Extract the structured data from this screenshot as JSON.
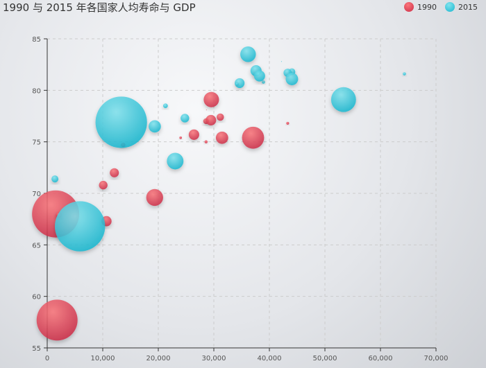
{
  "chart_data": {
    "type": "scatter",
    "title": "1990 与 2015 年各国家人均寿命与 GDP",
    "xlim": [
      0,
      70000
    ],
    "ylim": [
      55,
      85
    ],
    "xticks": [
      "0",
      "10,000",
      "20,000",
      "30,000",
      "40,000",
      "50,000",
      "60,000",
      "70,000"
    ],
    "yticks": [
      "55",
      "60",
      "65",
      "70",
      "75",
      "80",
      "85"
    ],
    "grid": true,
    "legend": "top-right",
    "series": [
      {
        "name": "1990",
        "color": "#e04c5f",
        "points": [
          [
            28604,
            77,
            17096869
          ],
          [
            31163,
            77.4,
            27662440
          ],
          [
            1516,
            68,
            1154605773
          ],
          [
            13670,
            74.7,
            10582082
          ],
          [
            28599,
            75,
            4986705
          ],
          [
            29476,
            77.1,
            56943299
          ],
          [
            31476,
            75.4,
            78958237
          ],
          [
            28666,
            78.1,
            254830
          ],
          [
            1777,
            57.7,
            870601776
          ],
          [
            29550,
            79.1,
            122249285
          ],
          [
            2076,
            67.9,
            20194354
          ],
          [
            12087,
            72,
            42972254
          ],
          [
            24021,
            75.4,
            3397534
          ],
          [
            43296,
            76.8,
            4240375
          ],
          [
            10088,
            70.8,
            38195258
          ],
          [
            19349,
            69.6,
            147568552
          ],
          [
            10670,
            67.3,
            53994605
          ],
          [
            26424,
            75.7,
            57110117
          ],
          [
            37062,
            75.4,
            252847810
          ]
        ]
      },
      {
        "name": "2015",
        "color": "#3ec8dc",
        "points": [
          [
            44056,
            81.8,
            23968973
          ],
          [
            43294,
            81.7,
            35939927
          ],
          [
            13334,
            76.9,
            1376048943
          ],
          [
            21291,
            78.5,
            11389562
          ],
          [
            38923,
            80.8,
            5503457
          ],
          [
            37599,
            81.9,
            64395345
          ],
          [
            44053,
            81.1,
            80688545
          ],
          [
            42182,
            82.8,
            329425
          ],
          [
            5903,
            66.8,
            1311050527
          ],
          [
            36162,
            83.5,
            126573481
          ],
          [
            1390,
            71.4,
            25155317
          ],
          [
            34644,
            80.7,
            50293439
          ],
          [
            34186,
            80.6,
            4528526
          ],
          [
            64304,
            81.6,
            5210967
          ],
          [
            24787,
            77.3,
            38611794
          ],
          [
            23038,
            73.13,
            143456918
          ],
          [
            19360,
            76.5,
            78665830
          ],
          [
            38225,
            81.4,
            64715810
          ],
          [
            53354,
            79.1,
            321773631
          ]
        ]
      }
    ]
  }
}
